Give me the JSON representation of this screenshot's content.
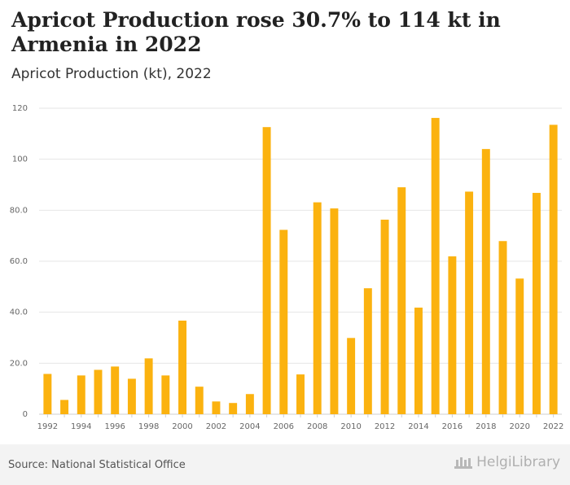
{
  "header": {
    "title": "Apricot Production rose 30.7% to 114 kt in Armenia in 2022",
    "subtitle": "Apricot Production (kt), 2022"
  },
  "footer": {
    "source": "Source: National Statistical Office",
    "logo_text": "HelgiLibrary"
  },
  "colors": {
    "bar": "#FBB20F",
    "grid": "#e6e6e6",
    "axis_text": "#666666"
  },
  "chart_data": {
    "type": "bar",
    "categories": [
      "1992",
      "1993",
      "1994",
      "1995",
      "1996",
      "1997",
      "1998",
      "1999",
      "2000",
      "2001",
      "2002",
      "2003",
      "2004",
      "2005",
      "2006",
      "2007",
      "2008",
      "2009",
      "2010",
      "2011",
      "2012",
      "2013",
      "2014",
      "2015",
      "2016",
      "2017",
      "2018",
      "2019",
      "2020",
      "2021",
      "2022"
    ],
    "values": [
      15.8,
      5.6,
      15.2,
      17.4,
      18.7,
      13.9,
      21.9,
      15.2,
      36.7,
      10.8,
      5.0,
      4.4,
      7.9,
      112.6,
      72.3,
      15.6,
      83.1,
      80.7,
      29.9,
      49.4,
      76.3,
      89.0,
      41.8,
      116.2,
      61.9,
      87.3,
      104.0,
      67.9,
      53.2,
      86.8,
      113.5
    ],
    "x_tick_labels": [
      "1992",
      "1994",
      "1996",
      "1998",
      "2000",
      "2002",
      "2004",
      "2006",
      "2008",
      "2010",
      "2012",
      "2014",
      "2016",
      "2018",
      "2020",
      "2022"
    ],
    "y_ticks": [
      0,
      20,
      40,
      60,
      80,
      100,
      120
    ],
    "y_tick_labels": [
      "0",
      "20.0",
      "40.0",
      "60.0",
      "80.0",
      "100",
      "120"
    ],
    "ylim": [
      0,
      120
    ],
    "grid": true
  }
}
